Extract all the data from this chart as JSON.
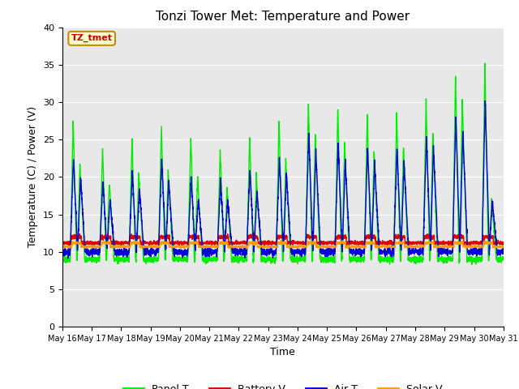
{
  "title": "Tonzi Tower Met: Temperature and Power",
  "xlabel": "Time",
  "ylabel": "Temperature (C) / Power (V)",
  "ylim": [
    0,
    40
  ],
  "yticks": [
    0,
    5,
    10,
    15,
    20,
    25,
    30,
    35,
    40
  ],
  "bg_color": "#e8e8e8",
  "annotation_text": "TZ_tmet",
  "annotation_bg": "#ffffcc",
  "annotation_border": "#cc8800",
  "annotation_text_color": "#cc0000",
  "colors": {
    "Panel T": "#00ee00",
    "Battery V": "#dd0000",
    "Air T": "#0000dd",
    "Solar V": "#ff9900"
  },
  "panel_peaks1": [
    27.5,
    24.0,
    25.2,
    27.0,
    25.6,
    23.7,
    25.5,
    27.7,
    30.0,
    29.0,
    28.5,
    28.5,
    30.2,
    33.5,
    35.2
  ],
  "panel_peaks2": [
    22.0,
    19.5,
    20.5,
    21.0,
    20.0,
    18.5,
    20.0,
    22.5,
    25.5,
    24.5,
    23.5,
    24.0,
    26.0,
    30.5,
    17.0
  ],
  "air_peaks1": [
    22.5,
    19.5,
    20.5,
    22.5,
    20.0,
    19.5,
    21.0,
    22.5,
    26.0,
    24.5,
    24.0,
    24.0,
    25.5,
    28.0,
    30.5
  ],
  "air_peaks2": [
    20.0,
    17.0,
    18.5,
    19.5,
    17.0,
    17.0,
    18.0,
    20.5,
    23.5,
    22.0,
    22.0,
    22.0,
    24.0,
    26.0,
    17.0
  ],
  "panel_base": 9.0,
  "air_base": 10.0,
  "batt_base": 11.2,
  "solar_base": 10.7
}
